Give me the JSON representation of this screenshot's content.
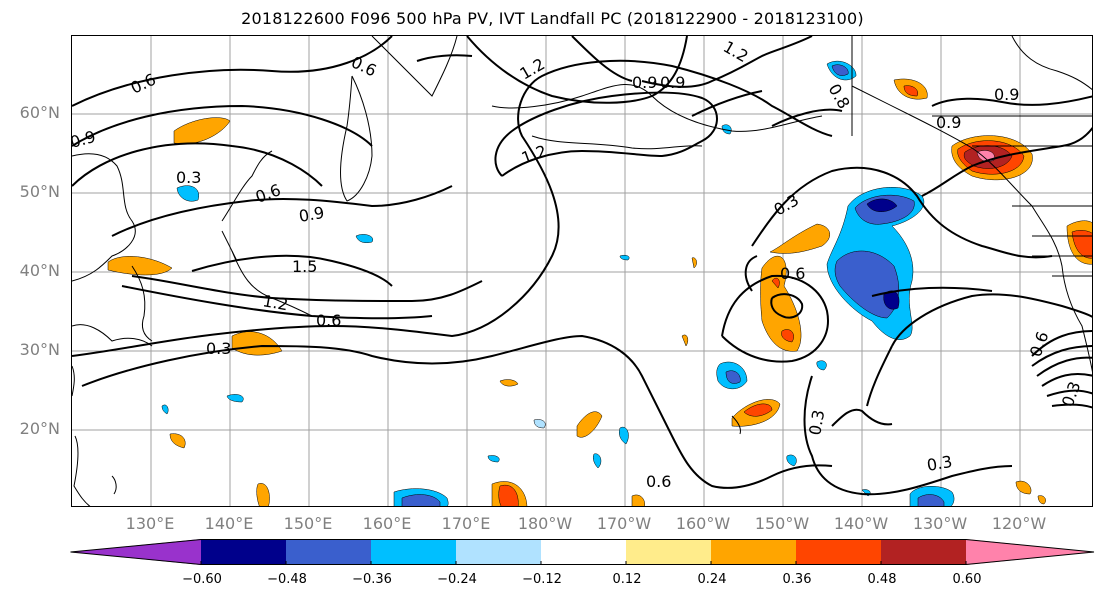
{
  "title": "2018122600 F096 500 hPa PV, IVT Landfall PC (2018122900 - 2018123100)",
  "map": {
    "lat_labels": [
      "60°N",
      "50°N",
      "40°N",
      "30°N",
      "20°N"
    ],
    "lon_labels": [
      "130°E",
      "140°E",
      "150°E",
      "160°E",
      "170°E",
      "180°W",
      "170°W",
      "160°W",
      "150°W",
      "140°W",
      "130°W",
      "120°W"
    ],
    "contour_labels": [
      "0.6",
      "0.6",
      "0.9",
      "1.2",
      "1.2",
      "0.9",
      "0.8",
      "0.9",
      "0.9",
      "0.3",
      "0.6",
      "0.9",
      "1.2",
      "1.5",
      "1.2",
      "0.6",
      "0.3",
      "0.3",
      "0.6",
      "0.3",
      "0.6",
      "0.3",
      "0.6",
      "0.3",
      "0.9"
    ],
    "line_color": "#000000",
    "grid_color": "#a0a0a0"
  },
  "colorbar": {
    "tick_labels": [
      "−0.60",
      "−0.48",
      "−0.36",
      "−0.24",
      "−0.12",
      "0.12",
      "0.24",
      "0.36",
      "0.48",
      "0.60"
    ],
    "colors": [
      "#9932cc",
      "#00008b",
      "#3a5fcd",
      "#00bfff",
      "#b0e2ff",
      "#ffffff",
      "#ffec8b",
      "#ffa500",
      "#ff4500",
      "#b22222",
      "#ff82ab"
    ]
  }
}
